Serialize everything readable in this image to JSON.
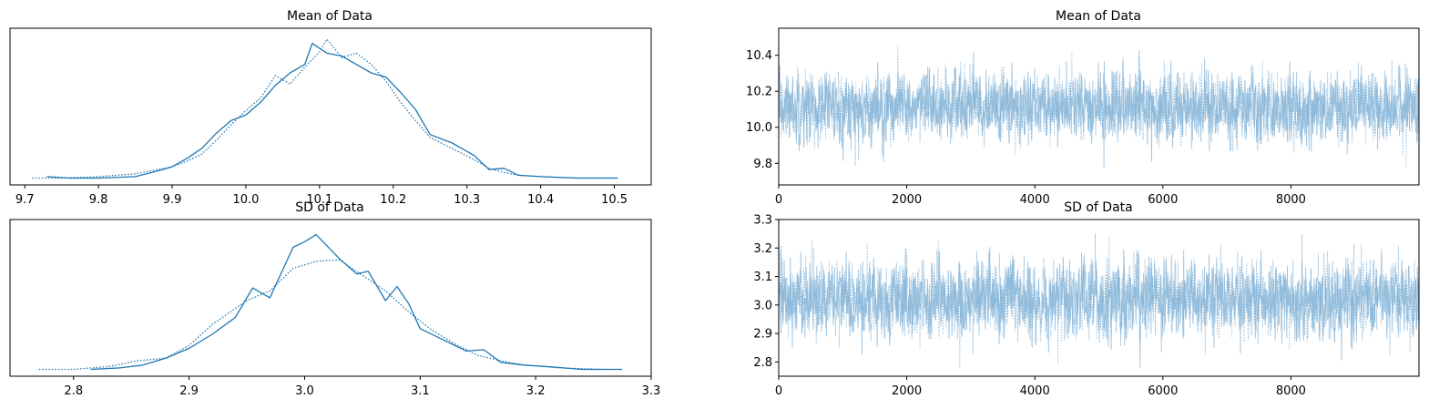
{
  "colors": {
    "line": "#1f77b4",
    "trace": "#7fb0d6"
  },
  "chart_data": [
    {
      "type": "line",
      "title": "Mean of Data",
      "xlabel": "",
      "ylabel": "",
      "xlim": [
        9.68,
        10.55
      ],
      "x_ticks": [
        "9.7",
        "9.8",
        "9.9",
        "10.0",
        "10.1",
        "10.2",
        "10.3",
        "10.4",
        "10.5"
      ],
      "y_ticks": [],
      "grid": false,
      "series": [
        {
          "style": "solid",
          "x": [
            9.73,
            9.76,
            9.8,
            9.85,
            9.88,
            9.9,
            9.92,
            9.94,
            9.96,
            9.98,
            10.0,
            10.02,
            10.04,
            10.06,
            10.08,
            10.09,
            10.11,
            10.13,
            10.15,
            10.17,
            10.19,
            10.21,
            10.23,
            10.25,
            10.28,
            10.31,
            10.33,
            10.35,
            10.37,
            10.4,
            10.45,
            10.505
          ],
          "y": [
            0.02,
            0.01,
            0.01,
            0.02,
            0.06,
            0.09,
            0.15,
            0.22,
            0.33,
            0.42,
            0.46,
            0.55,
            0.67,
            0.76,
            0.82,
            0.97,
            0.9,
            0.88,
            0.82,
            0.76,
            0.73,
            0.62,
            0.5,
            0.32,
            0.26,
            0.17,
            0.07,
            0.08,
            0.03,
            0.02,
            0.01,
            0.01
          ]
        },
        {
          "style": "dotted",
          "x": [
            9.71,
            9.75,
            9.8,
            9.85,
            9.88,
            9.9,
            9.92,
            9.94,
            9.96,
            9.98,
            10.0,
            10.02,
            10.04,
            10.06,
            10.08,
            10.1,
            10.11,
            10.13,
            10.15,
            10.17,
            10.19,
            10.21,
            10.23,
            10.25,
            10.28,
            10.31,
            10.33,
            10.35,
            10.37,
            10.4,
            10.45,
            10.5
          ],
          "y": [
            0.01,
            0.01,
            0.02,
            0.04,
            0.07,
            0.09,
            0.13,
            0.18,
            0.28,
            0.39,
            0.49,
            0.58,
            0.74,
            0.68,
            0.8,
            0.91,
            1.0,
            0.87,
            0.9,
            0.82,
            0.7,
            0.55,
            0.42,
            0.3,
            0.22,
            0.14,
            0.08,
            0.05,
            0.03,
            0.02,
            0.01,
            0.01
          ]
        }
      ]
    },
    {
      "type": "line",
      "title": "Mean of Data",
      "xlabel": "",
      "ylabel": "",
      "xlim": [
        0,
        10000
      ],
      "ylim": [
        9.68,
        10.55
      ],
      "x_ticks": [
        "0",
        "2000",
        "4000",
        "6000",
        "8000"
      ],
      "y_ticks": [
        "9.8",
        "10.0",
        "10.2",
        "10.4"
      ],
      "grid": false,
      "trace": {
        "draws": 10000,
        "center": 10.11,
        "spread": 0.09,
        "min": 9.72,
        "max": 10.51
      }
    },
    {
      "type": "line",
      "title": "SD of Data",
      "xlabel": "",
      "ylabel": "",
      "xlim": [
        2.745,
        3.3
      ],
      "x_ticks": [
        "2.8",
        "2.9",
        "3.0",
        "3.1",
        "3.2",
        "3.3"
      ],
      "y_ticks": [],
      "grid": false,
      "series": [
        {
          "style": "solid",
          "x": [
            2.815,
            2.84,
            2.86,
            2.88,
            2.9,
            2.92,
            2.94,
            2.955,
            2.97,
            2.99,
            3.0,
            3.01,
            3.03,
            3.045,
            3.055,
            3.07,
            3.08,
            3.09,
            3.1,
            3.12,
            3.14,
            3.155,
            3.17,
            3.19,
            3.21,
            3.24,
            3.275
          ],
          "y": [
            0.01,
            0.02,
            0.04,
            0.09,
            0.16,
            0.26,
            0.38,
            0.59,
            0.52,
            0.88,
            0.92,
            0.97,
            0.8,
            0.69,
            0.71,
            0.5,
            0.6,
            0.48,
            0.3,
            0.22,
            0.14,
            0.15,
            0.06,
            0.04,
            0.03,
            0.01,
            0.01
          ]
        },
        {
          "style": "dotted",
          "x": [
            2.77,
            2.8,
            2.83,
            2.855,
            2.88,
            2.9,
            2.92,
            2.95,
            2.97,
            2.99,
            3.01,
            3.03,
            3.05,
            3.07,
            3.09,
            3.11,
            3.13,
            3.15,
            3.17,
            3.19,
            3.22,
            3.26
          ],
          "y": [
            0.01,
            0.01,
            0.03,
            0.07,
            0.09,
            0.18,
            0.33,
            0.5,
            0.57,
            0.73,
            0.78,
            0.79,
            0.68,
            0.57,
            0.42,
            0.29,
            0.19,
            0.11,
            0.07,
            0.04,
            0.02,
            0.01
          ]
        }
      ]
    },
    {
      "type": "line",
      "title": "SD of Data",
      "xlabel": "",
      "ylabel": "",
      "xlim": [
        0,
        10000
      ],
      "ylim": [
        2.75,
        3.3
      ],
      "x_ticks": [
        "0",
        "2000",
        "4000",
        "6000",
        "8000"
      ],
      "y_ticks": [
        "2.8",
        "2.9",
        "3.0",
        "3.1",
        "3.2",
        "3.3"
      ],
      "grid": false,
      "trace": {
        "draws": 10000,
        "center": 3.02,
        "spread": 0.065,
        "min": 2.78,
        "max": 3.28
      }
    }
  ]
}
